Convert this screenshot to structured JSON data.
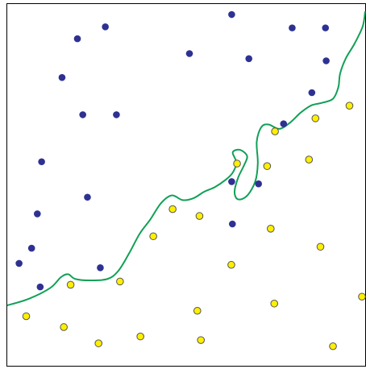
{
  "colors": {
    "class_a": "#2e3192",
    "class_b": "#ffef00",
    "class_b_stroke": "#555555",
    "boundary": "#11a056",
    "frame": "#000000",
    "background": "#ffffff"
  },
  "chart_data": {
    "type": "scatter",
    "title": "",
    "xlabel": "",
    "ylabel": "",
    "xlim": [
      0,
      1
    ],
    "ylim": [
      0,
      1
    ],
    "grid": false,
    "legend": "none",
    "series": [
      {
        "marker": "filled-circle",
        "color": "#2e3192",
        "points": [
          [
            0.274,
            0.937
          ],
          [
            0.196,
            0.904
          ],
          [
            0.627,
            0.971
          ],
          [
            0.796,
            0.934
          ],
          [
            0.889,
            0.934
          ],
          [
            0.509,
            0.863
          ],
          [
            0.675,
            0.849
          ],
          [
            0.891,
            0.843
          ],
          [
            0.153,
            0.797
          ],
          [
            0.851,
            0.755
          ],
          [
            0.211,
            0.694
          ],
          [
            0.305,
            0.694
          ],
          [
            0.772,
            0.669
          ],
          [
            0.096,
            0.564
          ],
          [
            0.627,
            0.509
          ],
          [
            0.702,
            0.503
          ],
          [
            0.224,
            0.466
          ],
          [
            0.084,
            0.42
          ],
          [
            0.629,
            0.392
          ],
          [
            0.068,
            0.325
          ],
          [
            0.033,
            0.283
          ],
          [
            0.26,
            0.271
          ],
          [
            0.092,
            0.218
          ]
        ]
      },
      {
        "marker": "open-circle",
        "color": "#ffef00",
        "points": [
          [
            0.956,
            0.719
          ],
          [
            0.861,
            0.684
          ],
          [
            0.748,
            0.648
          ],
          [
            0.642,
            0.559
          ],
          [
            0.843,
            0.57
          ],
          [
            0.726,
            0.552
          ],
          [
            0.462,
            0.433
          ],
          [
            0.537,
            0.414
          ],
          [
            0.736,
            0.379
          ],
          [
            0.408,
            0.358
          ],
          [
            0.875,
            0.329
          ],
          [
            0.626,
            0.279
          ],
          [
            0.315,
            0.233
          ],
          [
            0.177,
            0.224
          ],
          [
            0.991,
            0.191
          ],
          [
            0.746,
            0.172
          ],
          [
            0.531,
            0.152
          ],
          [
            0.053,
            0.137
          ],
          [
            0.158,
            0.107
          ],
          [
            0.372,
            0.081
          ],
          [
            0.541,
            0.071
          ],
          [
            0.255,
            0.062
          ],
          [
            0.91,
            0.054
          ]
        ]
      }
    ],
    "decision_boundary": [
      [
        0.0,
        0.167
      ],
      [
        0.06,
        0.185
      ],
      [
        0.12,
        0.215
      ],
      [
        0.15,
        0.245
      ],
      [
        0.17,
        0.253
      ],
      [
        0.19,
        0.24
      ],
      [
        0.23,
        0.236
      ],
      [
        0.28,
        0.24
      ],
      [
        0.31,
        0.262
      ],
      [
        0.34,
        0.31
      ],
      [
        0.37,
        0.365
      ],
      [
        0.4,
        0.405
      ],
      [
        0.43,
        0.45
      ],
      [
        0.46,
        0.471
      ],
      [
        0.49,
        0.458
      ],
      [
        0.52,
        0.463
      ],
      [
        0.55,
        0.481
      ],
      [
        0.58,
        0.494
      ],
      [
        0.61,
        0.514
      ],
      [
        0.63,
        0.534
      ],
      [
        0.64,
        0.562
      ],
      [
        0.63,
        0.59
      ],
      [
        0.65,
        0.597
      ],
      [
        0.67,
        0.58
      ],
      [
        0.662,
        0.555
      ],
      [
        0.645,
        0.52
      ],
      [
        0.635,
        0.48
      ],
      [
        0.645,
        0.46
      ],
      [
        0.67,
        0.47
      ],
      [
        0.693,
        0.51
      ],
      [
        0.7,
        0.56
      ],
      [
        0.697,
        0.62
      ],
      [
        0.71,
        0.66
      ],
      [
        0.73,
        0.667
      ],
      [
        0.76,
        0.655
      ],
      [
        0.79,
        0.672
      ],
      [
        0.82,
        0.7
      ],
      [
        0.85,
        0.72
      ],
      [
        0.88,
        0.727
      ],
      [
        0.91,
        0.738
      ],
      [
        0.925,
        0.77
      ],
      [
        0.93,
        0.808
      ],
      [
        0.946,
        0.85
      ],
      [
        0.97,
        0.89
      ],
      [
        0.993,
        0.938
      ],
      [
        1.0,
        0.98
      ]
    ]
  }
}
